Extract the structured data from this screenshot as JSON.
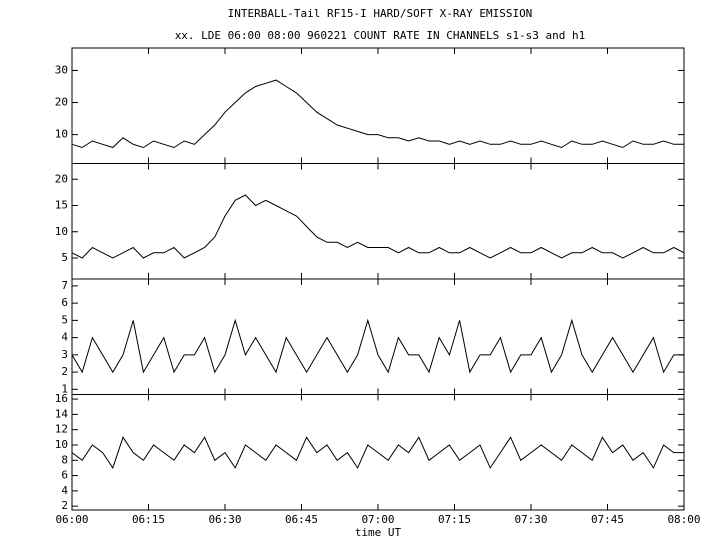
{
  "chart_data": [
    {
      "type": "line",
      "title": "INTERBALL-Tail RF15-I HARD/SOFT X-RAY EMISSION",
      "subtitle": "xx. LDE 06:00 08:00 960221  COUNT RATE IN CHANNELS s1-s3 and h1",
      "color": "#000000",
      "x": [
        "06:00",
        "06:02",
        "06:04",
        "06:06",
        "06:08",
        "06:10",
        "06:12",
        "06:14",
        "06:16",
        "06:18",
        "06:20",
        "06:22",
        "06:24",
        "06:26",
        "06:28",
        "06:30",
        "06:32",
        "06:34",
        "06:36",
        "06:38",
        "06:40",
        "06:42",
        "06:44",
        "06:46",
        "06:48",
        "06:50",
        "06:52",
        "06:54",
        "06:56",
        "06:58",
        "07:00",
        "07:02",
        "07:04",
        "07:06",
        "07:08",
        "07:10",
        "07:12",
        "07:14",
        "07:16",
        "07:18",
        "07:20",
        "07:22",
        "07:24",
        "07:26",
        "07:28",
        "07:30",
        "07:32",
        "07:34",
        "07:36",
        "07:38",
        "07:40",
        "07:42",
        "07:44",
        "07:46",
        "07:48",
        "07:50",
        "07:52",
        "07:54",
        "07:56",
        "07:58",
        "08:00"
      ],
      "values": [
        7,
        6,
        8,
        7,
        6,
        9,
        7,
        6,
        8,
        7,
        6,
        8,
        7,
        10,
        13,
        17,
        20,
        23,
        25,
        26,
        27,
        25,
        23,
        20,
        17,
        15,
        13,
        12,
        11,
        10,
        10,
        9,
        9,
        8,
        9,
        8,
        8,
        7,
        8,
        7,
        8,
        7,
        7,
        8,
        7,
        7,
        8,
        7,
        6,
        8,
        7,
        7,
        8,
        7,
        6,
        8,
        7,
        7,
        8,
        7,
        7
      ],
      "ylim": [
        1,
        37
      ],
      "yticks": [
        10,
        20,
        30
      ]
    },
    {
      "type": "line",
      "color": "#000000",
      "x": [
        "06:00",
        "06:02",
        "06:04",
        "06:06",
        "06:08",
        "06:10",
        "06:12",
        "06:14",
        "06:16",
        "06:18",
        "06:20",
        "06:22",
        "06:24",
        "06:26",
        "06:28",
        "06:30",
        "06:32",
        "06:34",
        "06:36",
        "06:38",
        "06:40",
        "06:42",
        "06:44",
        "06:46",
        "06:48",
        "06:50",
        "06:52",
        "06:54",
        "06:56",
        "06:58",
        "07:00",
        "07:02",
        "07:04",
        "07:06",
        "07:08",
        "07:10",
        "07:12",
        "07:14",
        "07:16",
        "07:18",
        "07:20",
        "07:22",
        "07:24",
        "07:26",
        "07:28",
        "07:30",
        "07:32",
        "07:34",
        "07:36",
        "07:38",
        "07:40",
        "07:42",
        "07:44",
        "07:46",
        "07:48",
        "07:50",
        "07:52",
        "07:54",
        "07:56",
        "07:58",
        "08:00"
      ],
      "values": [
        6,
        5,
        7,
        6,
        5,
        6,
        7,
        5,
        6,
        6,
        7,
        5,
        6,
        7,
        9,
        13,
        16,
        17,
        15,
        16,
        15,
        14,
        13,
        11,
        9,
        8,
        8,
        7,
        8,
        7,
        7,
        7,
        6,
        7,
        6,
        6,
        7,
        6,
        6,
        7,
        6,
        5,
        6,
        7,
        6,
        6,
        7,
        6,
        5,
        6,
        6,
        7,
        6,
        6,
        5,
        6,
        7,
        6,
        6,
        7,
        6
      ],
      "ylim": [
        1,
        23
      ],
      "yticks": [
        5,
        10,
        15,
        20
      ]
    },
    {
      "type": "line",
      "color": "#000000",
      "x": [
        "06:00",
        "06:02",
        "06:04",
        "06:06",
        "06:08",
        "06:10",
        "06:12",
        "06:14",
        "06:16",
        "06:18",
        "06:20",
        "06:22",
        "06:24",
        "06:26",
        "06:28",
        "06:30",
        "06:32",
        "06:34",
        "06:36",
        "06:38",
        "06:40",
        "06:42",
        "06:44",
        "06:46",
        "06:48",
        "06:50",
        "06:52",
        "06:54",
        "06:56",
        "06:58",
        "07:00",
        "07:02",
        "07:04",
        "07:06",
        "07:08",
        "07:10",
        "07:12",
        "07:14",
        "07:16",
        "07:18",
        "07:20",
        "07:22",
        "07:24",
        "07:26",
        "07:28",
        "07:30",
        "07:32",
        "07:34",
        "07:36",
        "07:38",
        "07:40",
        "07:42",
        "07:44",
        "07:46",
        "07:48",
        "07:50",
        "07:52",
        "07:54",
        "07:56",
        "07:58",
        "08:00"
      ],
      "values": [
        3,
        2,
        4,
        3,
        2,
        3,
        5,
        2,
        3,
        4,
        2,
        3,
        3,
        4,
        2,
        3,
        5,
        3,
        4,
        3,
        2,
        4,
        3,
        2,
        3,
        4,
        3,
        2,
        3,
        5,
        3,
        2,
        4,
        3,
        3,
        2,
        4,
        3,
        5,
        2,
        3,
        3,
        4,
        2,
        3,
        3,
        4,
        2,
        3,
        5,
        3,
        2,
        3,
        4,
        3,
        2,
        3,
        4,
        2,
        3,
        3
      ],
      "ylim": [
        0.7,
        7.4
      ],
      "yticks": [
        1,
        2,
        3,
        4,
        5,
        6,
        7
      ]
    },
    {
      "type": "line",
      "color": "#000000",
      "x_label": "time UT",
      "x": [
        "06:00",
        "06:02",
        "06:04",
        "06:06",
        "06:08",
        "06:10",
        "06:12",
        "06:14",
        "06:16",
        "06:18",
        "06:20",
        "06:22",
        "06:24",
        "06:26",
        "06:28",
        "06:30",
        "06:32",
        "06:34",
        "06:36",
        "06:38",
        "06:40",
        "06:42",
        "06:44",
        "06:46",
        "06:48",
        "06:50",
        "06:52",
        "06:54",
        "06:56",
        "06:58",
        "07:00",
        "07:02",
        "07:04",
        "07:06",
        "07:08",
        "07:10",
        "07:12",
        "07:14",
        "07:16",
        "07:18",
        "07:20",
        "07:22",
        "07:24",
        "07:26",
        "07:28",
        "07:30",
        "07:32",
        "07:34",
        "07:36",
        "07:38",
        "07:40",
        "07:42",
        "07:44",
        "07:46",
        "07:48",
        "07:50",
        "07:52",
        "07:54",
        "07:56",
        "07:58",
        "08:00"
      ],
      "values": [
        9,
        8,
        10,
        9,
        7,
        11,
        9,
        8,
        10,
        9,
        8,
        10,
        9,
        11,
        8,
        9,
        7,
        10,
        9,
        8,
        10,
        9,
        8,
        11,
        9,
        10,
        8,
        9,
        7,
        10,
        9,
        8,
        10,
        9,
        11,
        8,
        9,
        10,
        8,
        9,
        10,
        7,
        9,
        11,
        8,
        9,
        10,
        9,
        8,
        10,
        9,
        8,
        11,
        9,
        10,
        8,
        9,
        7,
        10,
        9,
        9
      ],
      "ylim": [
        1.5,
        16.6
      ],
      "yticks": [
        2,
        4,
        6,
        8,
        10,
        12,
        14,
        16
      ],
      "xlim": [
        "06:00",
        "08:00"
      ],
      "xticks": [
        "06:00",
        "06:15",
        "06:30",
        "06:45",
        "07:00",
        "07:15",
        "07:30",
        "07:45",
        "08:00"
      ]
    }
  ]
}
